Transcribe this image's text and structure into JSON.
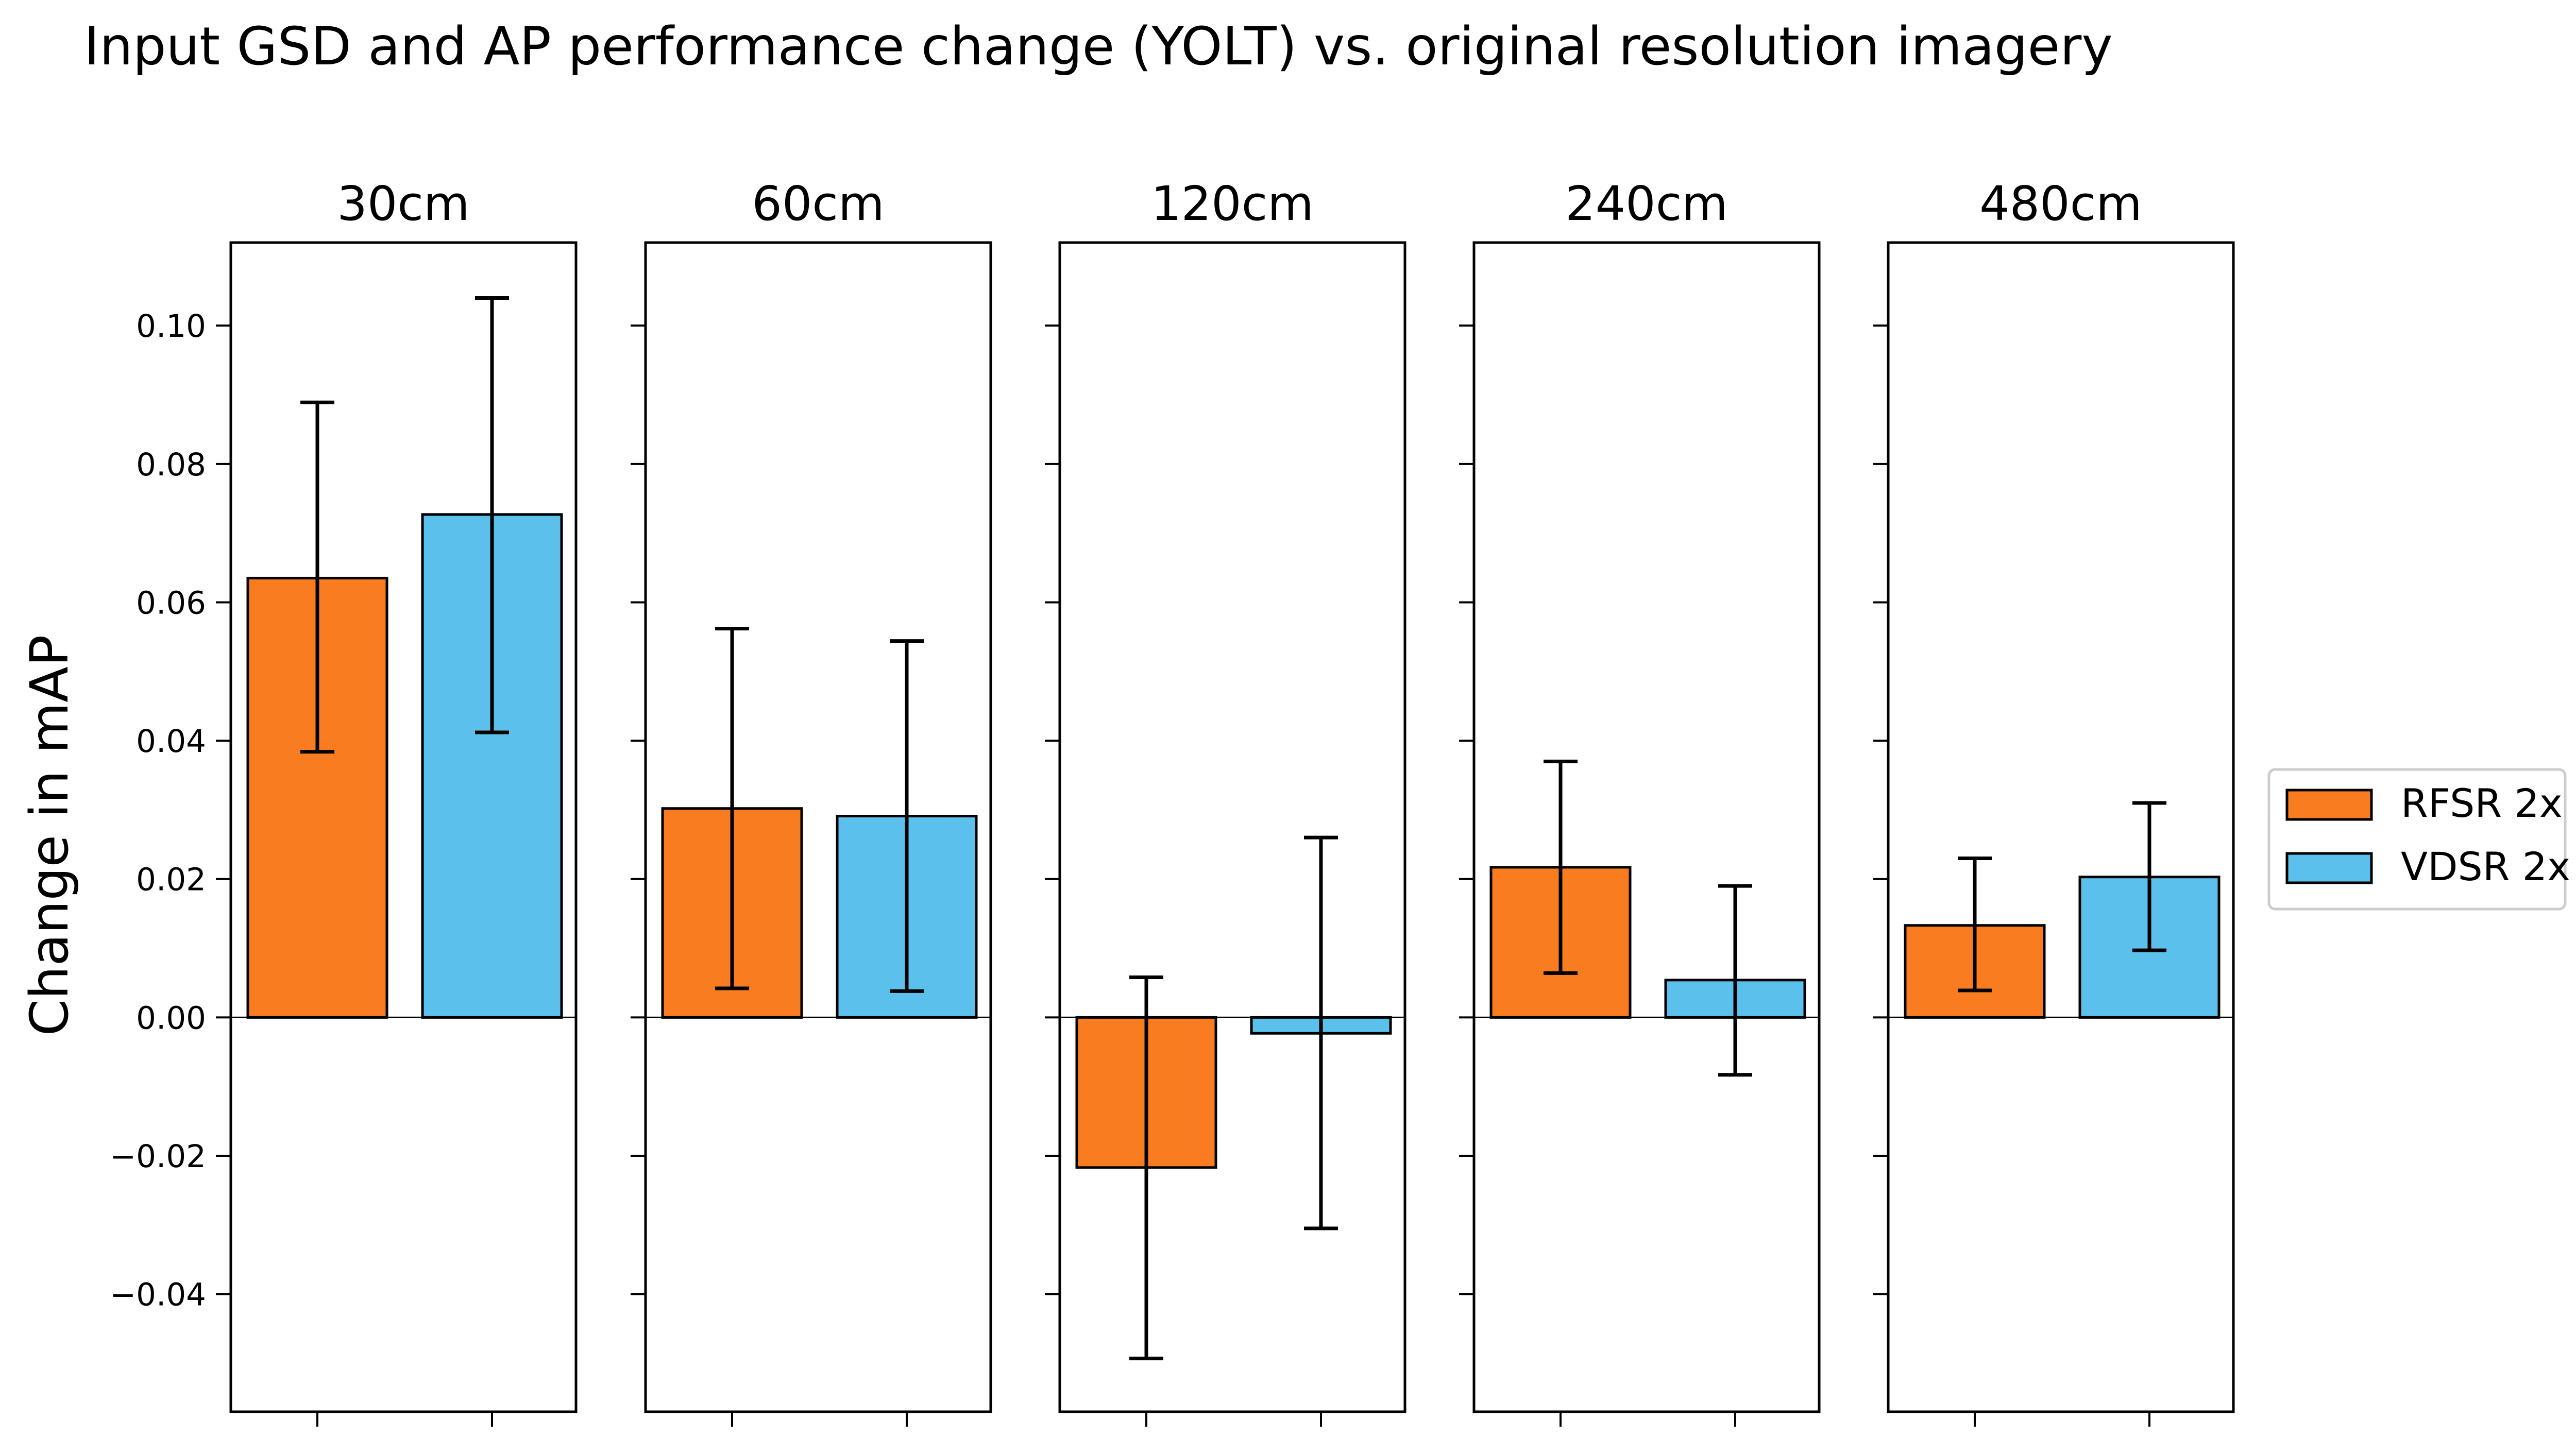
{
  "chart_data": {
    "type": "bar",
    "title": "Input GSD and AP performance change (YOLT) vs. original resolution imagery",
    "ylabel": "Change in mAP",
    "xlabel": "",
    "ylim": [
      -0.057,
      0.112
    ],
    "yticks": [
      -0.04,
      -0.02,
      0.0,
      0.02,
      0.04,
      0.06,
      0.08,
      0.1
    ],
    "ytick_labels": [
      "−0.04",
      "−0.02",
      "0.00",
      "0.02",
      "0.04",
      "0.06",
      "0.08",
      "0.10"
    ],
    "grid": false,
    "legend_position": "right-center",
    "panels": [
      "30cm",
      "60cm",
      "120cm",
      "240cm",
      "480cm"
    ],
    "series": [
      {
        "name": "RFSR 2x",
        "color": "#f97c21",
        "values": [
          0.0635,
          0.0302,
          -0.0217,
          0.0217,
          0.0133
        ],
        "err_low": [
          0.0384,
          0.0042,
          -0.0493,
          0.0064,
          0.0039
        ],
        "err_high": [
          0.0889,
          0.0562,
          0.0058,
          0.037,
          0.023
        ]
      },
      {
        "name": "VDSR 2x",
        "color": "#5bc0eb",
        "values": [
          0.0727,
          0.0291,
          -0.0023,
          0.0054,
          0.0203
        ],
        "err_low": [
          0.0412,
          0.0038,
          -0.0305,
          -0.0083,
          0.0097
        ],
        "err_high": [
          0.104,
          0.0544,
          0.026,
          0.019,
          0.031
        ]
      }
    ]
  }
}
